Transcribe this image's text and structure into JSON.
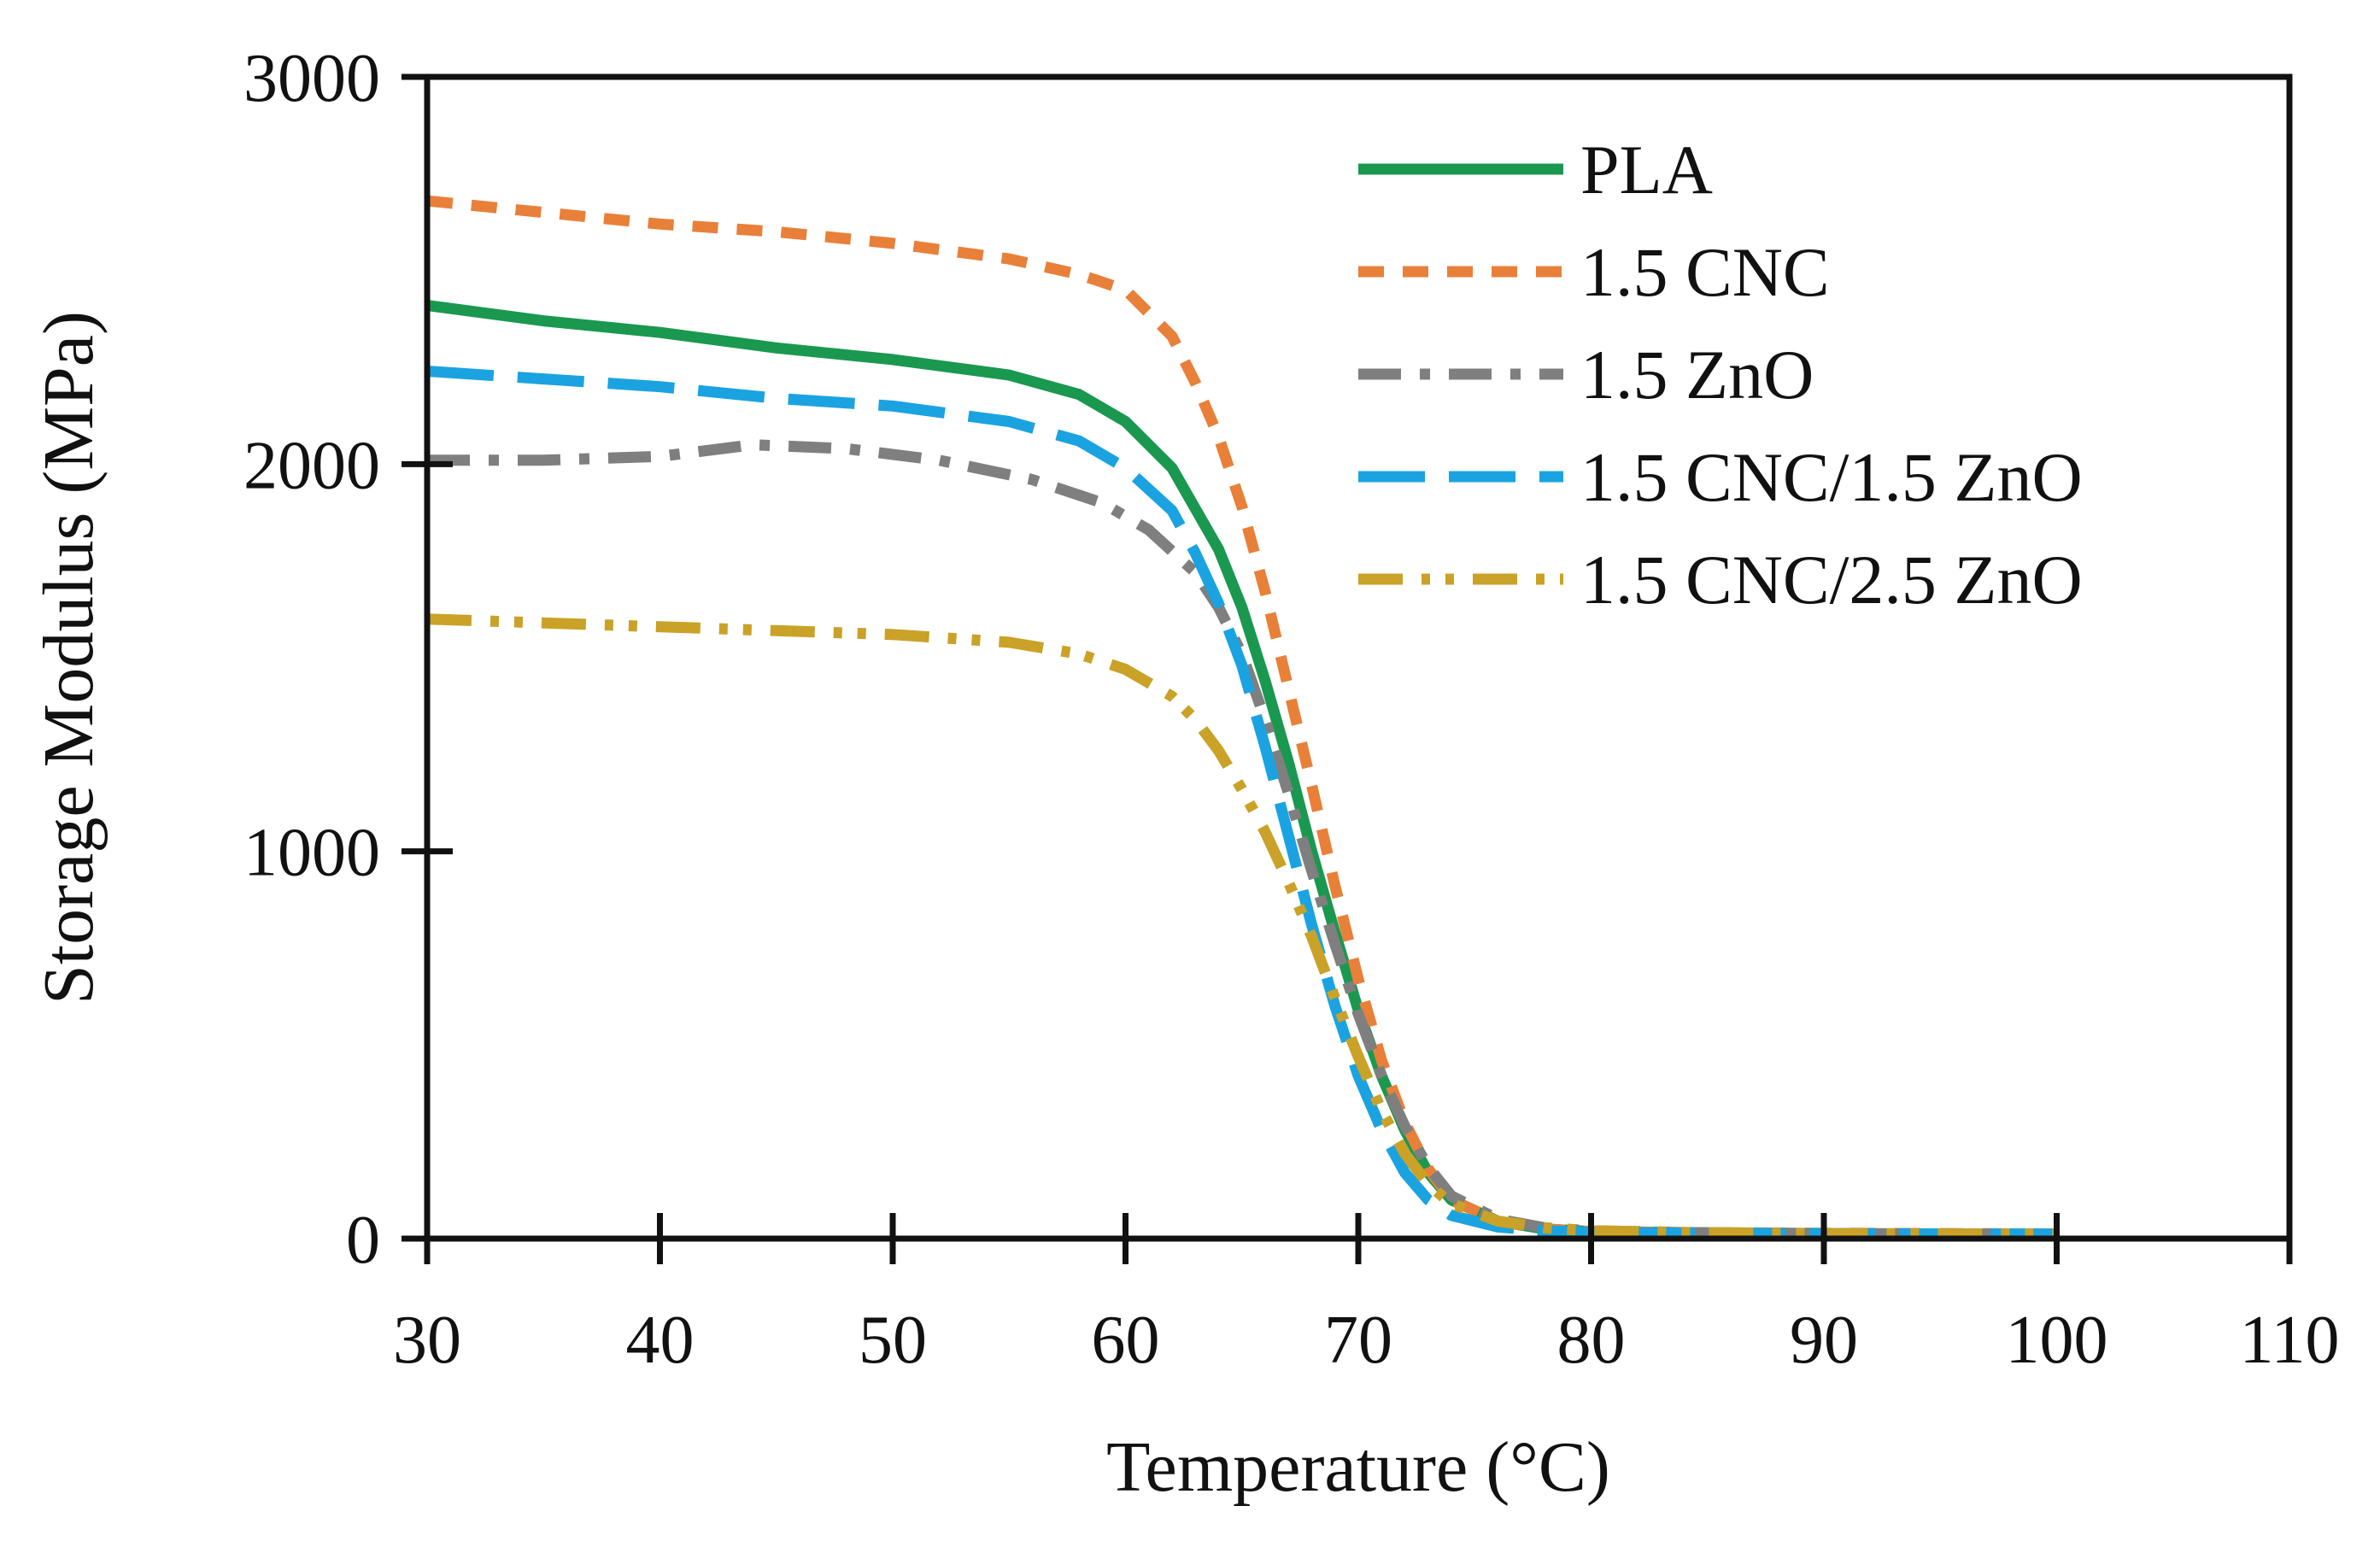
{
  "chart_data": {
    "type": "line",
    "title": "",
    "xlabel": "Temperature (°C)",
    "ylabel": "Storage Modulus (MPa)",
    "xlim": [
      30,
      110
    ],
    "ylim": [
      0,
      3000
    ],
    "xticks": [
      30,
      40,
      50,
      60,
      70,
      80,
      90,
      100,
      110
    ],
    "yticks": [
      0,
      1000,
      2000,
      3000
    ],
    "xtick_labels": [
      "30",
      "40",
      "50",
      "60",
      "70",
      "80",
      "90",
      "100",
      "110"
    ],
    "ytick_labels": [
      "0",
      "1000",
      "2000",
      "3000"
    ],
    "grid": false,
    "legend_position": "top-right",
    "series": [
      {
        "name": "PLA",
        "color": "#1a9850",
        "dash": "solid",
        "x": [
          30,
          35,
          40,
          45,
          50,
          55,
          58,
          60,
          62,
          64,
          65,
          66,
          67,
          68,
          69,
          70,
          71,
          72,
          73,
          74,
          76,
          78,
          80,
          85,
          90,
          95,
          100
        ],
        "y": [
          2410,
          2370,
          2340,
          2300,
          2270,
          2230,
          2180,
          2110,
          1990,
          1780,
          1630,
          1440,
          1230,
          1000,
          790,
          590,
          420,
          280,
          170,
          100,
          45,
          25,
          18,
          15,
          13,
          12,
          12
        ]
      },
      {
        "name": "1.5 CNC",
        "color": "#e8803a",
        "dash": "short-dash",
        "x": [
          30,
          35,
          40,
          45,
          50,
          55,
          58,
          60,
          62,
          63,
          64,
          65,
          66,
          67,
          68,
          69,
          70,
          71,
          72,
          73,
          74,
          76,
          78,
          80,
          85,
          90,
          95,
          100
        ],
        "y": [
          2680,
          2650,
          2620,
          2600,
          2570,
          2530,
          2490,
          2450,
          2330,
          2210,
          2070,
          1890,
          1670,
          1420,
          1170,
          910,
          670,
          460,
          300,
          180,
          100,
          45,
          25,
          18,
          15,
          14,
          13,
          12
        ]
      },
      {
        "name": "1.5 ZnO",
        "color": "#7f7f7f",
        "dash": "dash-dot",
        "x": [
          30,
          35,
          40,
          44,
          48,
          52,
          56,
          59,
          61,
          63,
          64,
          65,
          66,
          67,
          68,
          69,
          70,
          71,
          72,
          73,
          74,
          76,
          78,
          80,
          85,
          90,
          95,
          100
        ],
        "y": [
          2010,
          2010,
          2020,
          2050,
          2040,
          2010,
          1960,
          1900,
          1830,
          1720,
          1630,
          1510,
          1340,
          1150,
          950,
          760,
          580,
          420,
          290,
          185,
          110,
          50,
          28,
          20,
          15,
          13,
          12,
          12
        ]
      },
      {
        "name": "1.5 CNC/1.5 ZnO",
        "color": "#1aa3e0",
        "dash": "long-dash",
        "x": [
          30,
          35,
          40,
          45,
          50,
          55,
          58,
          60,
          62,
          63,
          64,
          65,
          66,
          67,
          68,
          69,
          70,
          71,
          72,
          73,
          74,
          76,
          78,
          80,
          85,
          90,
          95,
          100
        ],
        "y": [
          2240,
          2220,
          2200,
          2170,
          2150,
          2110,
          2060,
          1990,
          1880,
          1770,
          1640,
          1480,
          1270,
          1040,
          810,
          600,
          420,
          280,
          170,
          100,
          60,
          30,
          20,
          16,
          14,
          13,
          12,
          12
        ]
      },
      {
        "name": "1.5 CNC/2.5 ZnO",
        "color": "#c9a227",
        "dash": "dash-dot-dot",
        "x": [
          30,
          35,
          40,
          45,
          50,
          55,
          58,
          60,
          62,
          63,
          64,
          65,
          66,
          67,
          68,
          69,
          70,
          71,
          72,
          73,
          74,
          76,
          78,
          80,
          85,
          90,
          95,
          100
        ],
        "y": [
          1600,
          1590,
          1580,
          1570,
          1560,
          1540,
          1510,
          1470,
          1400,
          1340,
          1260,
          1160,
          1050,
          920,
          780,
          620,
          470,
          330,
          220,
          140,
          90,
          45,
          28,
          20,
          15,
          13,
          12,
          12
        ]
      }
    ]
  }
}
